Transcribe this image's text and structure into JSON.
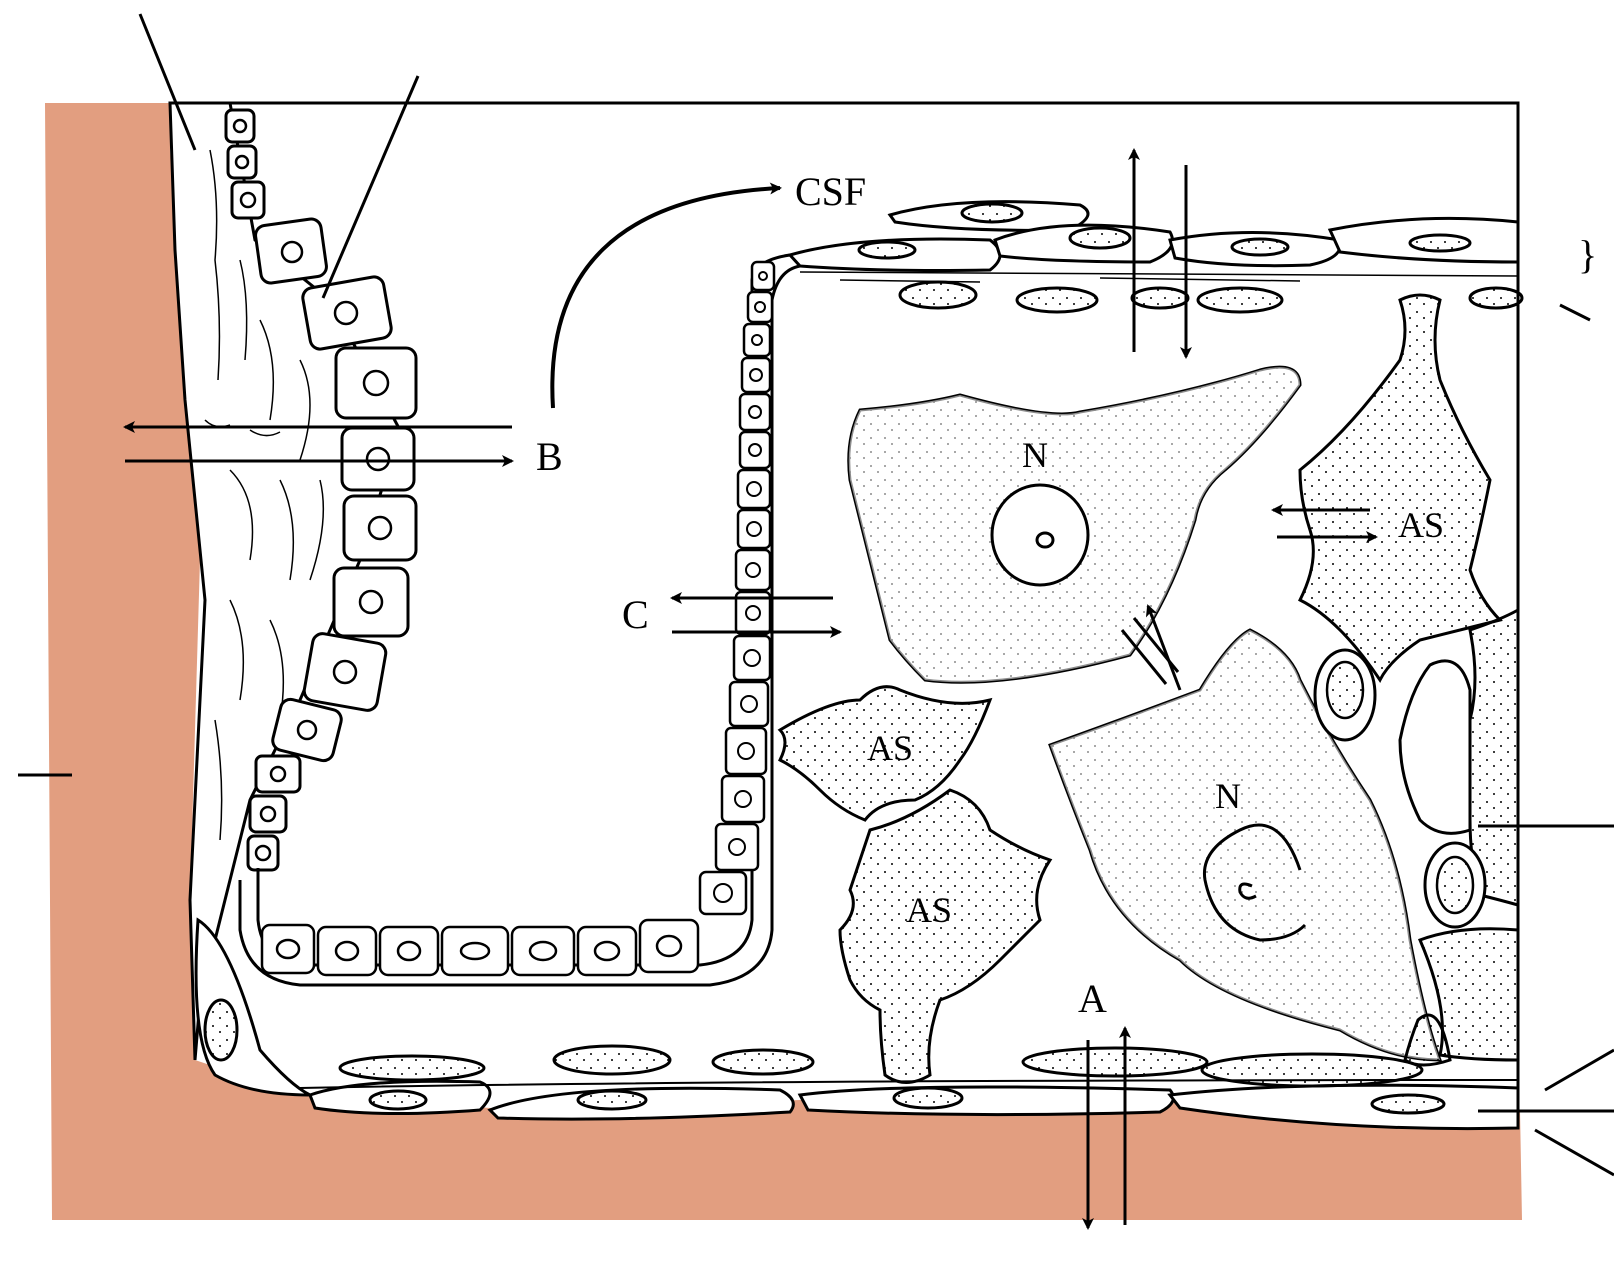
{
  "labels": {
    "csf": "CSF",
    "b": "B",
    "c": "C",
    "a": "A",
    "neuron": "N",
    "astrocyte": "AS",
    "brace": "}"
  },
  "colors": {
    "blood_region": "#E29E80",
    "ink": "#000000",
    "paper": "#FFFFFF"
  }
}
